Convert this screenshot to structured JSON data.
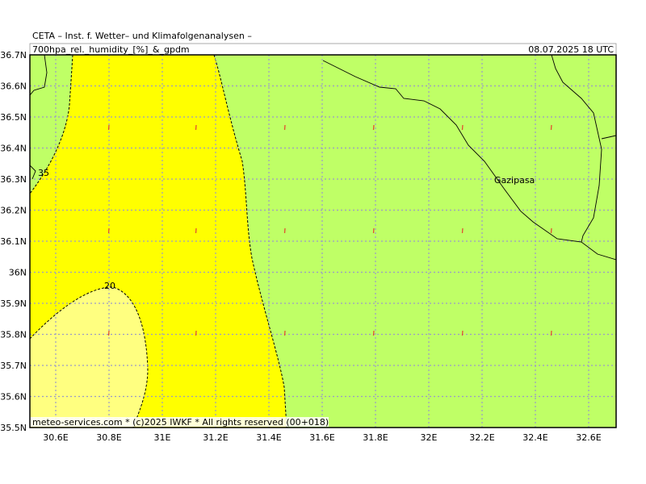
{
  "header": {
    "title": "CETA – Inst. f. Wetter– und Klimafolgenanalysen –",
    "product": "700hpa_rel._humidity_[%]_&_gpdm",
    "valid": "08.07.2025 18 UTC"
  },
  "map": {
    "x_labels": [
      "30.6E",
      "30.8E",
      "31E",
      "31.2E",
      "31.4E",
      "31.6E",
      "31.8E",
      "32E",
      "32.2E",
      "32.4E",
      "32.6E"
    ],
    "y_labels": [
      "36.7N",
      "36.6N",
      "36.5N",
      "36.4N",
      "36.3N",
      "36.2N",
      "36.1N",
      "36N",
      "35.9N",
      "35.8N",
      "35.7N",
      "35.6N",
      "35.5N"
    ],
    "place": "Gazipasa",
    "contour_labels": [
      "35",
      "20"
    ]
  },
  "footer": "meteo-services.com * (c)2025 IWKF * All rights reserved (00+018)"
}
